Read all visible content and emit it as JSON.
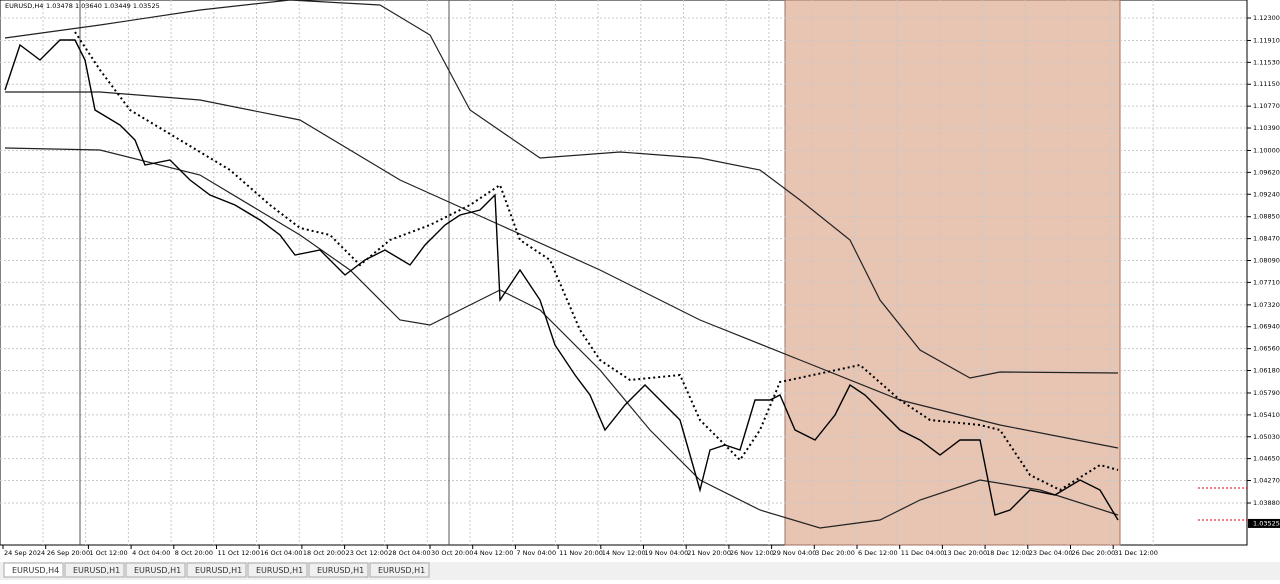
{
  "header": {
    "symbol": "EURUSD,H4",
    "ohlc": "1.03478 1.03640 1.03449 1.03525"
  },
  "price_axis": {
    "ticks": [
      {
        "value": 1.123,
        "label": "1.12300"
      },
      {
        "value": 1.1191,
        "label": "1.11910"
      },
      {
        "value": 1.1153,
        "label": "1.11530"
      },
      {
        "value": 1.1115,
        "label": "1.11150"
      },
      {
        "value": 1.1077,
        "label": "1.10770"
      },
      {
        "value": 1.1039,
        "label": "1.10390"
      },
      {
        "value": 1.1,
        "label": "1.10000"
      },
      {
        "value": 1.0962,
        "label": "1.09620"
      },
      {
        "value": 1.0924,
        "label": "1.09240"
      },
      {
        "value": 1.0885,
        "label": "1.08850"
      },
      {
        "value": 1.0847,
        "label": "1.08470"
      },
      {
        "value": 1.0809,
        "label": "1.08090"
      },
      {
        "value": 1.0771,
        "label": "1.07710"
      },
      {
        "value": 1.0732,
        "label": "1.07320"
      },
      {
        "value": 1.0694,
        "label": "1.06940"
      },
      {
        "value": 1.0656,
        "label": "1.06560"
      },
      {
        "value": 1.0618,
        "label": "1.06180"
      },
      {
        "value": 1.0579,
        "label": "1.05790"
      },
      {
        "value": 1.0541,
        "label": "1.05410"
      },
      {
        "value": 1.0503,
        "label": "1.05030"
      },
      {
        "value": 1.0465,
        "label": "1.04650"
      },
      {
        "value": 1.0427,
        "label": "1.04270"
      },
      {
        "value": 1.0388,
        "label": "1.03880"
      }
    ],
    "current": {
      "value": 1.03525,
      "label": "1.03525"
    }
  },
  "time_axis": {
    "labels": [
      "24 Sep 2024",
      "26 Sep 20:00",
      "1 Oct 12:00",
      "4 Oct 04:00",
      "8 Oct 20:00",
      "11 Oct 12:00",
      "16 Oct 04:00",
      "18 Oct 20:00",
      "23 Oct 12:00",
      "28 Oct 04:00",
      "30 Oct 20:00",
      "4 Nov 12:00",
      "7 Nov 04:00",
      "11 Nov 20:00",
      "14 Nov 12:00",
      "19 Nov 04:00",
      "21 Nov 20:00",
      "26 Nov 12:00",
      "29 Nov 04:00",
      "3 Dec 20:00",
      "6 Dec 12:00",
      "11 Dec 04:00",
      "13 Dec 20:00",
      "18 Dec 12:00",
      "23 Dec 04:00",
      "26 Dec 20:00",
      "31 Dec 12:00"
    ]
  },
  "tabs": [
    "EURUSD,H4",
    "EURUSD,H1",
    "EURUSD,H1",
    "EURUSD,H1",
    "EURUSD,H1",
    "EURUSD,H1",
    "EURUSD,H1"
  ]
}
